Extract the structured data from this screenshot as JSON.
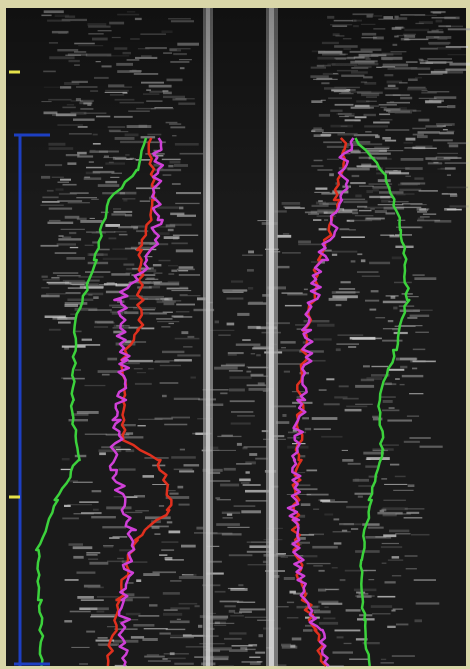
{
  "image": {
    "kind": "grayscale kymograph with tracked edge traces",
    "frame_color": "#d9d6a8",
    "background_color": "#1a1a1a",
    "vertical_line_color": "#bdbdbd",
    "scale_bar_color": "#1d3fc2",
    "tick_mark_color": "#e6e24a",
    "trace_colors": {
      "green": "#3cd23c",
      "red": "#e0301e",
      "magenta": "#d040d8"
    }
  }
}
